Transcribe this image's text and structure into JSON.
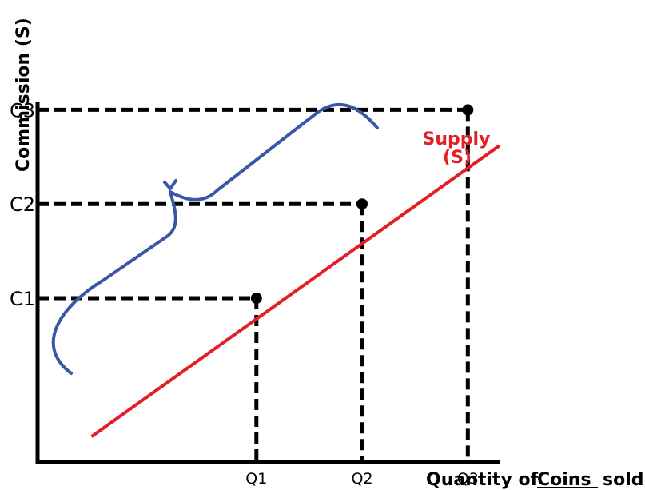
{
  "chart_data": {
    "type": "line",
    "ylabel": "Commission  (S)",
    "xlabel_prefix": "Quantity of",
    "xlabel_emphasis": "Coins",
    "xlabel_suffix": "sold",
    "x_ticks": [
      "Q1",
      "Q2",
      "Q3"
    ],
    "y_ticks": [
      "C1",
      "C2",
      "C3"
    ],
    "xlim": [
      -1.07,
      3.3
    ],
    "ylim": [
      -0.74,
      3.08
    ],
    "series": [
      {
        "name": "Supply\n(S)",
        "label_line1": "Supply",
        "label_line2": "(S)",
        "color": "#e31e24",
        "x": [
          -0.56,
          3.3
        ],
        "y": [
          -0.47,
          2.62
        ],
        "points": [
          {
            "x": 1,
            "y": 1
          },
          {
            "x": 2,
            "y": 2
          },
          {
            "x": 3,
            "y": 3
          }
        ]
      }
    ],
    "guides": "dashed",
    "annotation": {
      "type": "brace",
      "color": "#3b56a6"
    }
  }
}
